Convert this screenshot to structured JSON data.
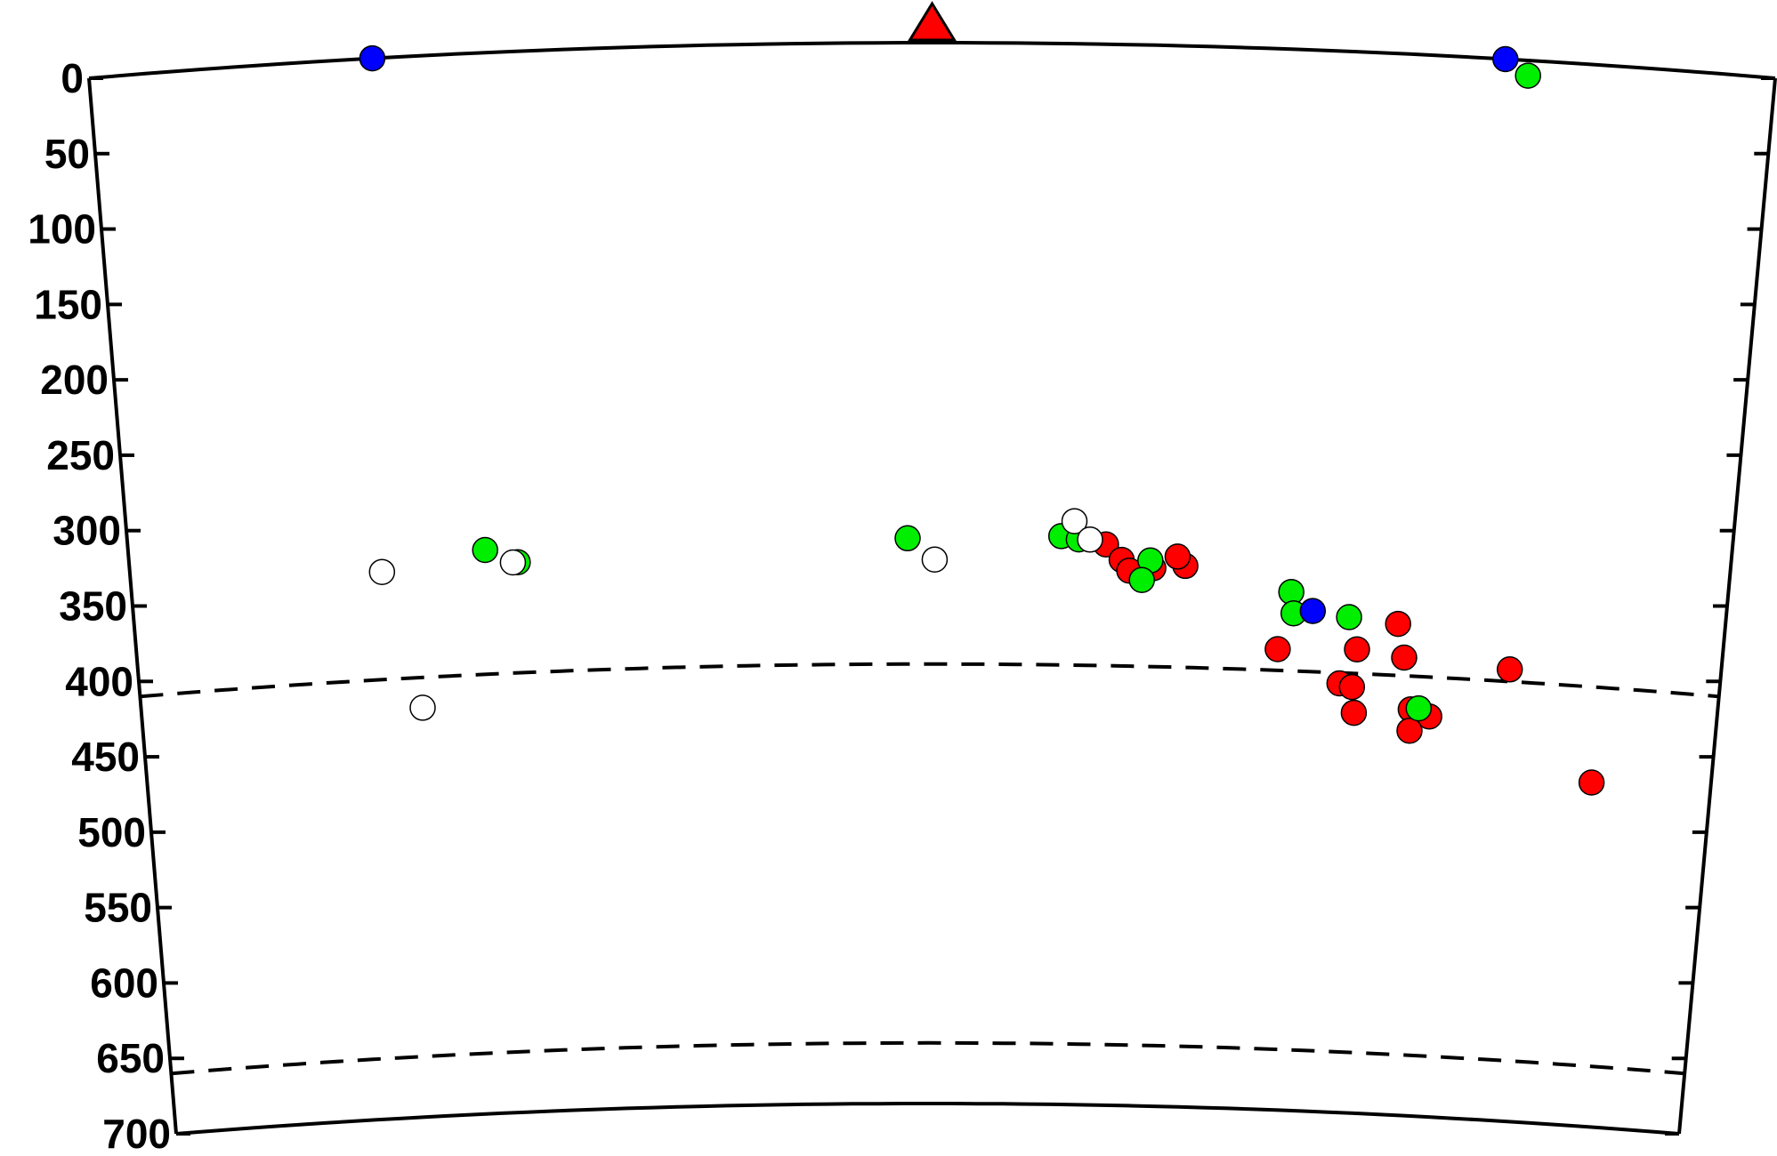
{
  "chart_data": {
    "type": "scatter",
    "title": "",
    "xlabel": "",
    "ylabel": "",
    "y_inverted": true,
    "ylim": [
      0,
      700
    ],
    "xlim": [
      0,
      1
    ],
    "y_ticks": [
      "0",
      "50",
      "100",
      "150",
      "200",
      "250",
      "300",
      "350",
      "400",
      "450",
      "500",
      "550",
      "600",
      "650",
      "700"
    ],
    "reference_lines": [
      {
        "depth": 410,
        "style": "dashed"
      },
      {
        "depth": 660,
        "style": "dashed"
      }
    ],
    "station_marker": {
      "x": 0.5,
      "color": "#ff0000",
      "shape": "triangle"
    },
    "colors": {
      "red": "#ff0000",
      "green": "#00ee00",
      "blue": "#0000ff",
      "white": "#ffffff"
    },
    "series": [
      {
        "color": "red",
        "values": [
          {
            "x": 0.61,
            "y": 330
          },
          {
            "x": 0.64,
            "y": 345
          },
          {
            "x": 0.66,
            "y": 343
          },
          {
            "x": 0.62,
            "y": 340
          },
          {
            "x": 0.625,
            "y": 347
          },
          {
            "x": 0.655,
            "y": 337
          },
          {
            "x": 0.795,
            "y": 376
          },
          {
            "x": 0.77,
            "y": 394
          },
          {
            "x": 0.8,
            "y": 398
          },
          {
            "x": 0.72,
            "y": 396
          },
          {
            "x": 0.76,
            "y": 417
          },
          {
            "x": 0.768,
            "y": 419
          },
          {
            "x": 0.77,
            "y": 436
          },
          {
            "x": 0.806,
            "y": 432
          },
          {
            "x": 0.818,
            "y": 436
          },
          {
            "x": 0.806,
            "y": 446
          },
          {
            "x": 0.867,
            "y": 402
          },
          {
            "x": 0.924,
            "y": 473
          }
        ]
      },
      {
        "color": "green",
        "values": [
          {
            "x": 0.854,
            "y": 10
          },
          {
            "x": 0.222,
            "y": 328
          },
          {
            "x": 0.242,
            "y": 337
          },
          {
            "x": 0.486,
            "y": 327
          },
          {
            "x": 0.582,
            "y": 325
          },
          {
            "x": 0.593,
            "y": 327
          },
          {
            "x": 0.638,
            "y": 340
          },
          {
            "x": 0.633,
            "y": 353
          },
          {
            "x": 0.727,
            "y": 358
          },
          {
            "x": 0.729,
            "y": 372
          },
          {
            "x": 0.764,
            "y": 373
          },
          {
            "x": 0.811,
            "y": 431
          }
        ]
      },
      {
        "color": "blue",
        "values": [
          {
            "x": 0.168,
            "y": 0
          },
          {
            "x": 0.84,
            "y": 0
          },
          {
            "x": 0.741,
            "y": 370
          }
        ]
      },
      {
        "color": "white",
        "values": [
          {
            "x": 0.157,
            "y": 339
          },
          {
            "x": 0.239,
            "y": 337
          },
          {
            "x": 0.503,
            "y": 341
          },
          {
            "x": 0.59,
            "y": 315
          },
          {
            "x": 0.6,
            "y": 327
          },
          {
            "x": 0.178,
            "y": 430
          }
        ]
      }
    ]
  }
}
